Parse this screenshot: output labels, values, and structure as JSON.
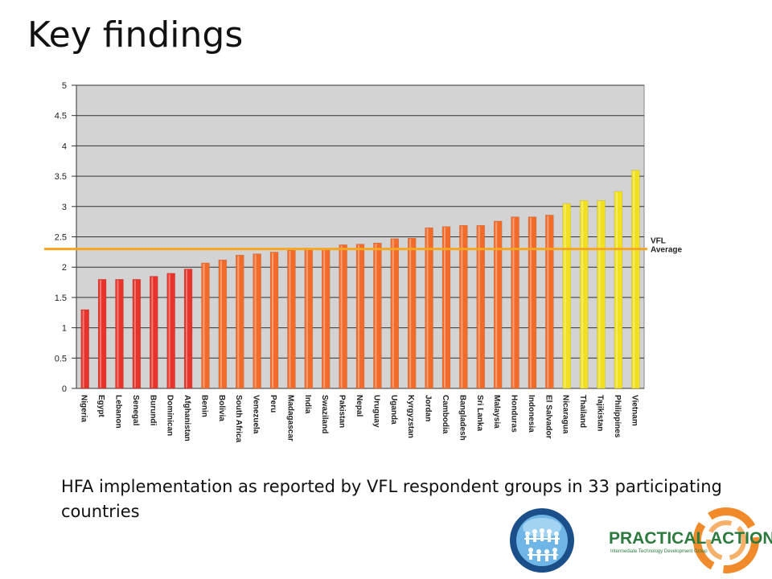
{
  "slide": {
    "title": "Key findings",
    "caption": "HFA implementation as reported by VFL respondent groups in 33 participating countries"
  },
  "logos": {
    "globe": {
      "name": "vfl-globe-logo",
      "colors": {
        "ring": "#1a4f8a",
        "inner": "#6fb6e6",
        "figures": "#ffffff"
      }
    },
    "practical_action": {
      "text": "PRACTICAL ACTION",
      "subtext": "Intermediate Technology Development Group",
      "colors": {
        "text": "#2d7a3f",
        "swirl": "#f08a2a"
      }
    }
  },
  "chart_data": {
    "type": "bar",
    "title": "",
    "xlabel": "",
    "ylabel": "",
    "ylim": [
      0,
      5
    ],
    "yticks": [
      "0",
      "0.5",
      "1",
      "1.5",
      "2",
      "2.5",
      "3",
      "3.5",
      "4",
      "4.5",
      "5"
    ],
    "grid": true,
    "categories": [
      "Nigeria",
      "Egypt",
      "Lebanon",
      "Senegal",
      "Burundi",
      "Dominican",
      "Afghanistan",
      "Benin",
      "Bolivia",
      "South Africa",
      "Venezuela",
      "Peru",
      "Madagascar",
      "India",
      "Swaziland",
      "Pakistan",
      "Nepal",
      "Uruguay",
      "Uganda",
      "Kyrgyzstan",
      "Jordan",
      "Cambodia",
      "Bangladesh",
      "Sri Lanka",
      "Malaysia",
      "Honduras",
      "Indonesia",
      "El Salvador",
      "Nicaragua",
      "Thailand",
      "Tajikistan",
      "Philippines",
      "Vietnam"
    ],
    "values": [
      1.3,
      1.8,
      1.8,
      1.8,
      1.85,
      1.9,
      1.97,
      2.07,
      2.12,
      2.2,
      2.22,
      2.25,
      2.28,
      2.3,
      2.3,
      2.37,
      2.38,
      2.4,
      2.47,
      2.48,
      2.65,
      2.67,
      2.69,
      2.69,
      2.76,
      2.83,
      2.83,
      2.86,
      3.05,
      3.1,
      3.1,
      3.25,
      3.6
    ],
    "bar_colors": [
      "#e8332a",
      "#e8332a",
      "#e8332a",
      "#e8332a",
      "#e8332a",
      "#e8332a",
      "#e8332a",
      "#f26b2a",
      "#f26b2a",
      "#f26b2a",
      "#f26b2a",
      "#f26b2a",
      "#f26b2a",
      "#f26b2a",
      "#f26b2a",
      "#f26b2a",
      "#f26b2a",
      "#f26b2a",
      "#f26b2a",
      "#f26b2a",
      "#f26b2a",
      "#f26b2a",
      "#f26b2a",
      "#f26b2a",
      "#f26b2a",
      "#f26b2a",
      "#f26b2a",
      "#f26b2a",
      "#f0e020",
      "#f0e020",
      "#f0e020",
      "#f0e020",
      "#f0e020"
    ],
    "reference_line": {
      "value": 2.3,
      "label": [
        "VFL",
        "Average"
      ],
      "color": "#f5a623"
    },
    "plot_background": "#d3d3d3",
    "grid_color": "#333333"
  }
}
